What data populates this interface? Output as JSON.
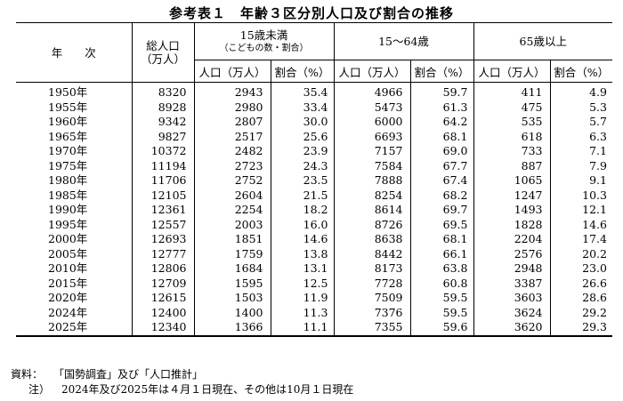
{
  "title": "参考表１　年齢３区分別人口及び割合の推移",
  "headers": {
    "year": "年　　次",
    "total_line1": "総人口",
    "total_line2": "（万人）",
    "group_under15_line1": "15歳未満",
    "group_under15_line2": "（こどもの数・割合）",
    "group_15_64": "15～64歳",
    "group_65plus": "65歳以上",
    "population": "人口（万人）",
    "ratio": "割合（%）"
  },
  "rows": [
    {
      "year": "1950年",
      "total": "8320",
      "u15_pop": "2943",
      "u15_pct": "35.4",
      "w_pop": "4966",
      "w_pct": "59.7",
      "o_pop": "411",
      "o_pct": "4.9"
    },
    {
      "year": "1955年",
      "total": "8928",
      "u15_pop": "2980",
      "u15_pct": "33.4",
      "w_pop": "5473",
      "w_pct": "61.3",
      "o_pop": "475",
      "o_pct": "5.3"
    },
    {
      "year": "1960年",
      "total": "9342",
      "u15_pop": "2807",
      "u15_pct": "30.0",
      "w_pop": "6000",
      "w_pct": "64.2",
      "o_pop": "535",
      "o_pct": "5.7"
    },
    {
      "year": "1965年",
      "total": "9827",
      "u15_pop": "2517",
      "u15_pct": "25.6",
      "w_pop": "6693",
      "w_pct": "68.1",
      "o_pop": "618",
      "o_pct": "6.3"
    },
    {
      "year": "1970年",
      "total": "10372",
      "u15_pop": "2482",
      "u15_pct": "23.9",
      "w_pop": "7157",
      "w_pct": "69.0",
      "o_pop": "733",
      "o_pct": "7.1"
    },
    {
      "year": "1975年",
      "total": "11194",
      "u15_pop": "2723",
      "u15_pct": "24.3",
      "w_pop": "7584",
      "w_pct": "67.7",
      "o_pop": "887",
      "o_pct": "7.9"
    },
    {
      "year": "1980年",
      "total": "11706",
      "u15_pop": "2752",
      "u15_pct": "23.5",
      "w_pop": "7888",
      "w_pct": "67.4",
      "o_pop": "1065",
      "o_pct": "9.1"
    },
    {
      "year": "1985年",
      "total": "12105",
      "u15_pop": "2604",
      "u15_pct": "21.5",
      "w_pop": "8254",
      "w_pct": "68.2",
      "o_pop": "1247",
      "o_pct": "10.3"
    },
    {
      "year": "1990年",
      "total": "12361",
      "u15_pop": "2254",
      "u15_pct": "18.2",
      "w_pop": "8614",
      "w_pct": "69.7",
      "o_pop": "1493",
      "o_pct": "12.1"
    },
    {
      "year": "1995年",
      "total": "12557",
      "u15_pop": "2003",
      "u15_pct": "16.0",
      "w_pop": "8726",
      "w_pct": "69.5",
      "o_pop": "1828",
      "o_pct": "14.6"
    },
    {
      "year": "2000年",
      "total": "12693",
      "u15_pop": "1851",
      "u15_pct": "14.6",
      "w_pop": "8638",
      "w_pct": "68.1",
      "o_pop": "2204",
      "o_pct": "17.4"
    },
    {
      "year": "2005年",
      "total": "12777",
      "u15_pop": "1759",
      "u15_pct": "13.8",
      "w_pop": "8442",
      "w_pct": "66.1",
      "o_pop": "2576",
      "o_pct": "20.2"
    },
    {
      "year": "2010年",
      "total": "12806",
      "u15_pop": "1684",
      "u15_pct": "13.1",
      "w_pop": "8173",
      "w_pct": "63.8",
      "o_pop": "2948",
      "o_pct": "23.0"
    },
    {
      "year": "2015年",
      "total": "12709",
      "u15_pop": "1595",
      "u15_pct": "12.5",
      "w_pop": "7728",
      "w_pct": "60.8",
      "o_pop": "3387",
      "o_pct": "26.6"
    },
    {
      "year": "2020年",
      "total": "12615",
      "u15_pop": "1503",
      "u15_pct": "11.9",
      "w_pop": "7509",
      "w_pct": "59.5",
      "o_pop": "3603",
      "o_pct": "28.6"
    },
    {
      "year": "2024年",
      "total": "12400",
      "u15_pop": "1400",
      "u15_pct": "11.3",
      "w_pop": "7376",
      "w_pct": "59.5",
      "o_pop": "3624",
      "o_pct": "29.2"
    },
    {
      "year": "2025年",
      "total": "12340",
      "u15_pop": "1366",
      "u15_pct": "11.1",
      "w_pop": "7355",
      "w_pct": "59.6",
      "o_pop": "3620",
      "o_pct": "29.3"
    }
  ],
  "notes": {
    "source_label": "資料：",
    "source_text": "「国勢調査」及び「人口推計」",
    "note_label": "注）",
    "note_text": "2024年及び2025年は４月１日現在、その他は10月１日現在"
  }
}
